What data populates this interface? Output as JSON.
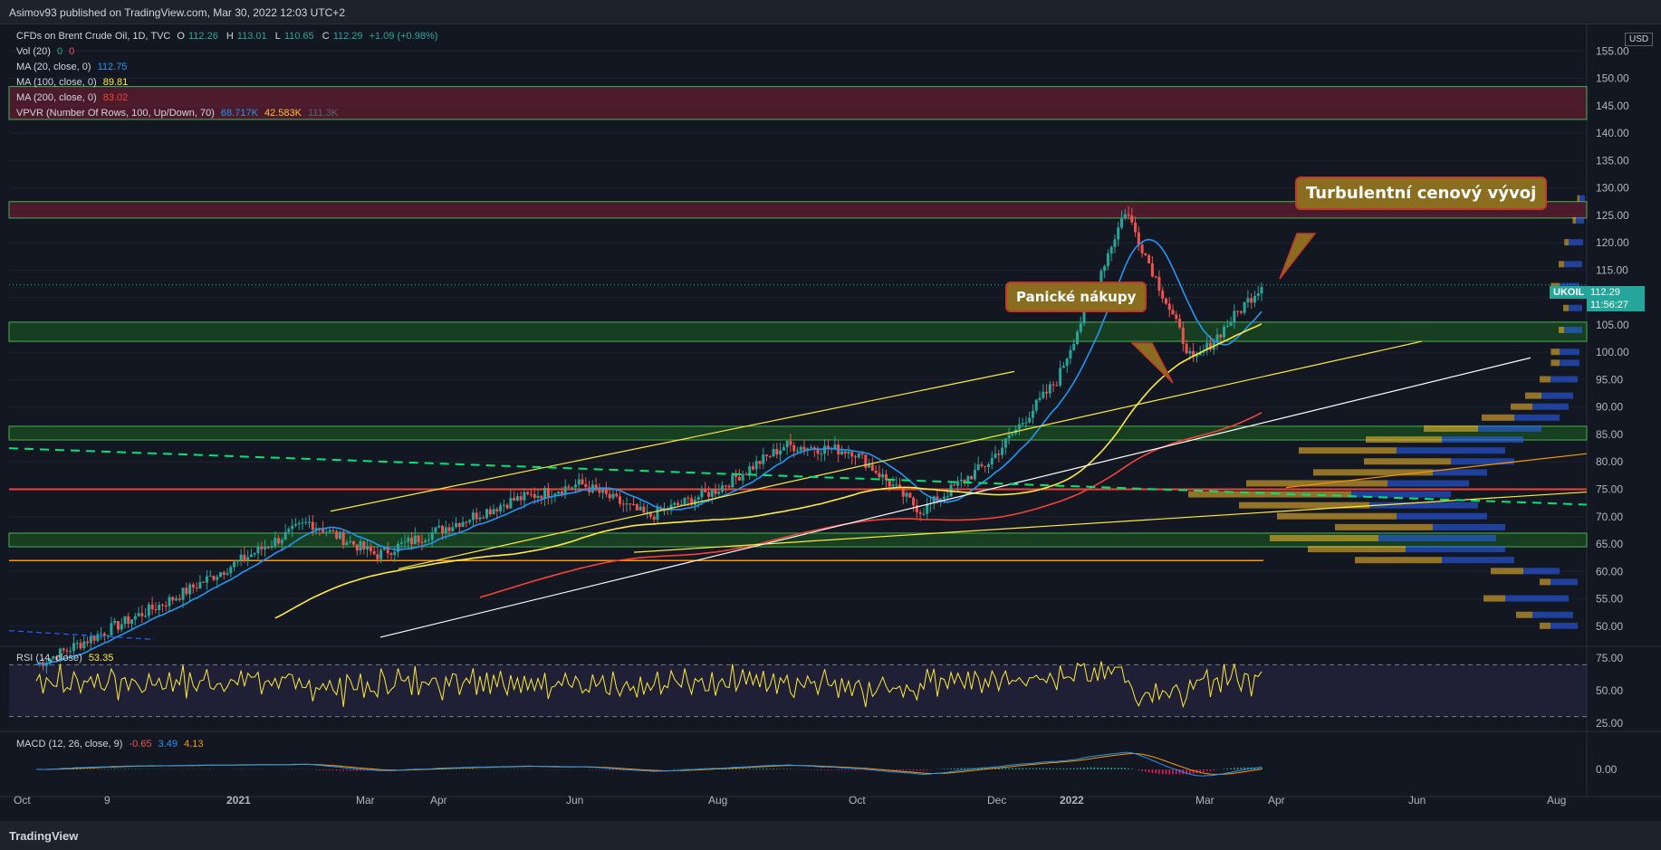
{
  "header": {
    "published": "Asimov93 published on TradingView.com, Mar 30, 2022 12:03 UTC+2"
  },
  "legend": {
    "symbol": "CFDs on Brent Crude Oil, 1D, TVC",
    "ohlc": {
      "o_label": "O",
      "o": "112.26",
      "h_label": "H",
      "h": "113.01",
      "l_label": "L",
      "l": "110.65",
      "c_label": "C",
      "c": "112.29",
      "chg": "+1.09 (+0.98%)"
    },
    "vol": {
      "label": "Vol (20)",
      "v1": "0",
      "v2": "0"
    },
    "ma20": {
      "label": "MA (20, close, 0)",
      "value": "112.75"
    },
    "ma100": {
      "label": "MA (100, close, 0)",
      "value": "89.81"
    },
    "ma200": {
      "label": "MA (200, close, 0)",
      "value": "83.02"
    },
    "vpvr": {
      "label": "VPVR (Number Of Rows, 100, Up/Down, 70)",
      "up": "68.717K",
      "down": "42.583K",
      "total": "111.3K"
    }
  },
  "price_tag": {
    "symbol": "UKOIL",
    "price": "112.29",
    "countdown": "11:56:27"
  },
  "currency": "USD",
  "rsi_legend": {
    "label": "RSI (14, close)",
    "value": "53.35"
  },
  "macd_legend": {
    "label": "MACD (12, 26, close, 9)",
    "v1": "-0.65",
    "v2": "3.49",
    "v3": "4.13"
  },
  "annotations": {
    "panic": "Panické nákupy",
    "turbulent": "Turbulentní cenový vývoj"
  },
  "footer": {
    "brand": "TradingView"
  },
  "colors": {
    "bg": "#131722",
    "up": "#26a69a",
    "down": "#ef5350",
    "ma20": "#2196f3",
    "ma100": "#ffeb3b",
    "ma200": "#f44336",
    "rsi": "#ffeb3b",
    "green_zone": "#4caf50",
    "red_zone": "#8e2a3a"
  },
  "chart_data": {
    "type": "line",
    "title": "CFDs on Brent Crude Oil, 1D, TVC",
    "x_ticks": [
      "Oct",
      "9",
      "2021",
      "Mar",
      "Apr",
      "Jun",
      "Aug",
      "Oct",
      "Dec",
      "2022",
      "Mar",
      "Apr",
      "Jun",
      "Aug"
    ],
    "y_ticks": [
      50,
      55,
      60,
      65,
      70,
      75,
      80,
      85,
      90,
      95,
      100,
      105,
      110,
      115,
      120,
      125,
      130,
      135,
      140,
      145,
      150,
      155
    ],
    "ylim": [
      47,
      160
    ],
    "price_series": {
      "name": "Close",
      "points": [
        [
          "Nov 2020",
          43
        ],
        [
          "Dec 2020",
          49
        ],
        [
          "Jan 2021",
          55
        ],
        [
          "Feb 2021",
          62
        ],
        [
          "Mar 2021",
          69
        ],
        [
          "Apr 2021",
          63
        ],
        [
          "May 2021",
          68
        ],
        [
          "Jun 2021",
          73
        ],
        [
          "Jul 2021",
          76
        ],
        [
          "Aug 2021",
          70
        ],
        [
          "Sep 2021",
          75
        ],
        [
          "Oct 2021",
          83
        ],
        [
          "Nov 2021",
          82
        ],
        [
          "Dec 2021",
          71
        ],
        [
          "Jan 2022",
          80
        ],
        [
          "Feb 2022",
          95
        ],
        [
          "Mar 2022",
          126
        ],
        [
          "Mar 2022 mid",
          98
        ],
        [
          "Mar 30 2022",
          112.29
        ]
      ]
    },
    "moving_averages": [
      {
        "name": "MA (20, close, 0)",
        "last": 112.75
      },
      {
        "name": "MA (100, close, 0)",
        "last": 89.81
      },
      {
        "name": "MA (200, close, 0)",
        "last": 83.02
      }
    ],
    "zones": {
      "resistance": [
        [
          142.5,
          148.5
        ],
        [
          124.5,
          127.5
        ]
      ],
      "support": [
        [
          102,
          105.5
        ],
        [
          84,
          86.5
        ],
        [
          64.5,
          67
        ]
      ]
    },
    "horizontal_lines": [
      75.0,
      62.0
    ],
    "rsi": {
      "range": [
        25,
        75
      ],
      "levels": [
        30,
        70
      ],
      "last": 53.35
    },
    "macd": {
      "ticks": [
        "0.00"
      ],
      "last": [
        -0.65,
        3.49,
        4.13
      ]
    },
    "rsi_ticks": [
      "75.00",
      "50.00",
      "25.00"
    ]
  }
}
